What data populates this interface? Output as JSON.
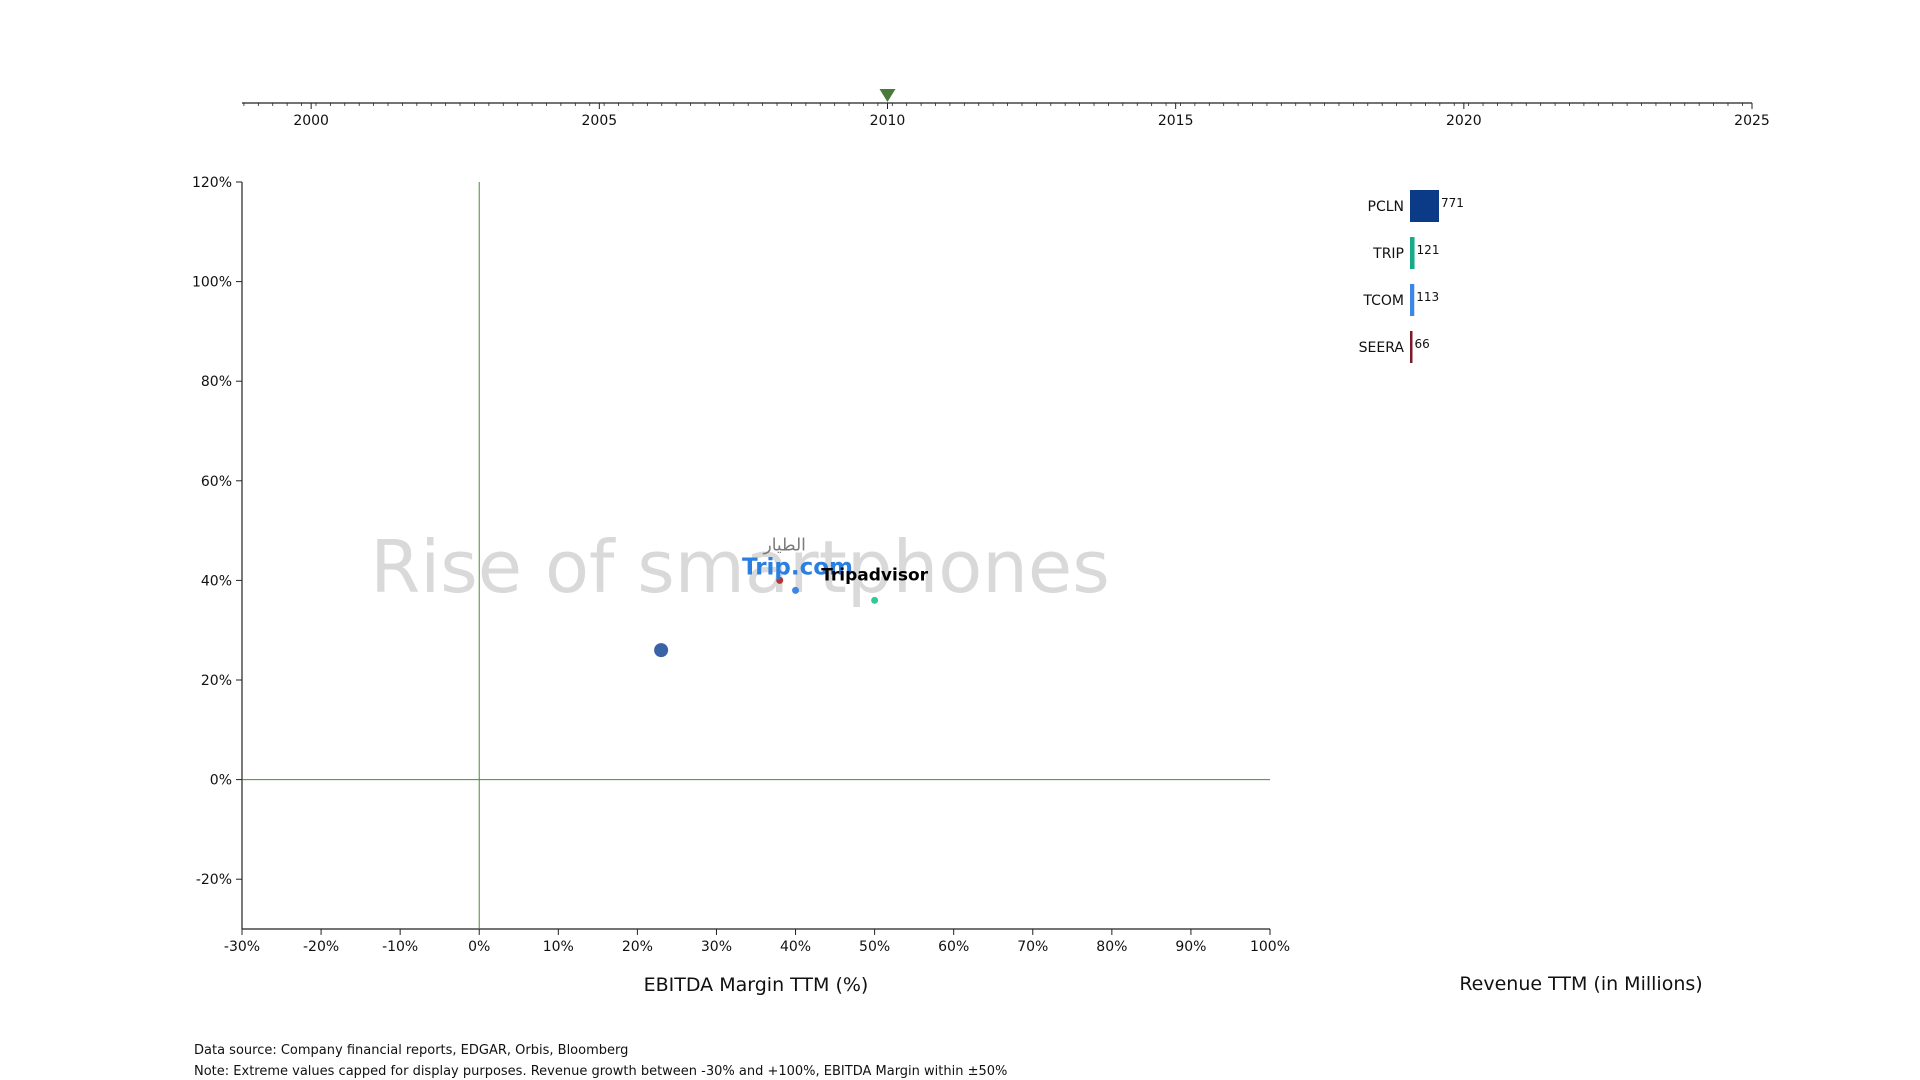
{
  "chart_data": {
    "type": "scatter",
    "annotation": "Rise of smartphones",
    "timeline": {
      "range": [
        1998.8,
        2025
      ],
      "tick_labels": [
        2000,
        2005,
        2010,
        2015,
        2020,
        2025
      ],
      "current": 2010.0,
      "marker_color": "#4a7a3a"
    },
    "scatter": {
      "xlabel": "EBITDA Margin TTM (%)",
      "ylabel": "",
      "xlim": [
        -30,
        100
      ],
      "ylim": [
        -30,
        120
      ],
      "x_ticks": [
        -30,
        -20,
        -10,
        0,
        10,
        20,
        30,
        40,
        50,
        60,
        70,
        80,
        90,
        100
      ],
      "y_ticks": [
        -20,
        0,
        20,
        40,
        60,
        80,
        100,
        120
      ],
      "tick_format": "{v}%",
      "reference_lines": {
        "x": 0,
        "y": 0,
        "color": "#4a8a3a"
      },
      "points": [
        {
          "ticker": "PCLN",
          "x": 23,
          "y": 26,
          "color": "#3a62a7",
          "logo_text": ""
        },
        {
          "ticker": "TRIP",
          "x": 50,
          "y": 36,
          "color": "#34c79a",
          "logo_text": "Tripadvisor"
        },
        {
          "ticker": "TCOM",
          "x": 40,
          "y": 38,
          "color": "#3b86e6",
          "logo_text": "Trip.com"
        },
        {
          "ticker": "SEERA",
          "x": 38,
          "y": 40,
          "color": "#b2332f",
          "logo_text": "الطيار"
        }
      ]
    },
    "bars": {
      "xlabel": "Revenue TTM (in Millions)",
      "categories": [
        "PCLN",
        "TRIP",
        "TCOM",
        "SEERA"
      ],
      "values": [
        771,
        121,
        113,
        66
      ],
      "colors": [
        "#0b3a87",
        "#17a98a",
        "#3b86e6",
        "#7a1a2a"
      ]
    }
  },
  "footnotes": {
    "source": "Data source: Company financial reports, EDGAR, Orbis, Bloomberg",
    "note": "Note: Extreme values capped for display purposes. Revenue growth between -30% and +100%, EBITDA Margin within ±50%"
  }
}
